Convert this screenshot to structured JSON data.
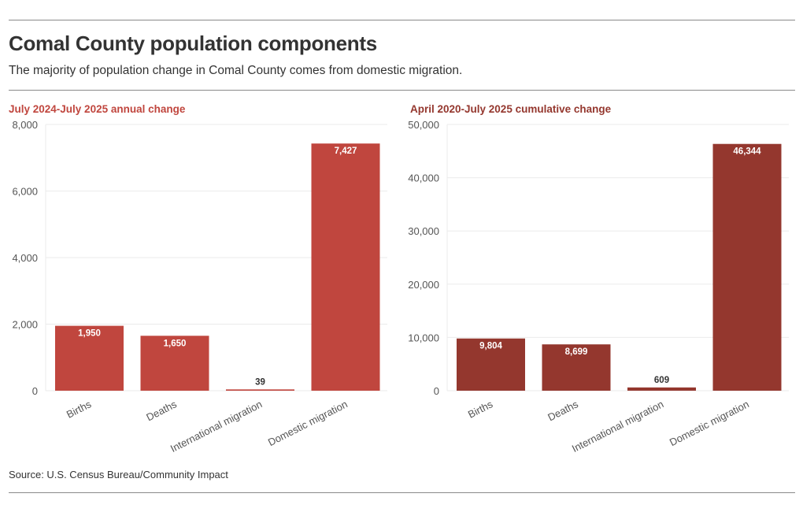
{
  "title": "Comal County population components",
  "subtitle": "The majority of population change in Comal County comes from domestic migration.",
  "source": "Source: U.S. Census Bureau/Community Impact",
  "colors": {
    "annual_bar": "#c0463e",
    "cumulative_bar": "#94372e",
    "annual_title": "#c0463e",
    "cumulative_title": "#94372e",
    "gridline": "#ebebeb",
    "axis_text": "#555555"
  },
  "chart_data": [
    {
      "type": "bar",
      "title": "July 2024-July 2025 annual change",
      "categories": [
        "Births",
        "Deaths",
        "International migration",
        "Domestic migration"
      ],
      "values": [
        1950,
        1650,
        39,
        7427
      ],
      "value_labels": [
        "1,950",
        "1,650",
        "39",
        "7,427"
      ],
      "xlabel": "",
      "ylabel": "",
      "ylim": [
        0,
        8000
      ],
      "yticks": [
        0,
        2000,
        4000,
        6000,
        8000
      ],
      "ytick_labels": [
        "0",
        "2,000",
        "4,000",
        "6,000",
        "8,000"
      ],
      "grid": true
    },
    {
      "type": "bar",
      "title": "April 2020-July 2025 cumulative change",
      "categories": [
        "Births",
        "Deaths",
        "International migration",
        "Domestic migration"
      ],
      "values": [
        9804,
        8699,
        609,
        46344
      ],
      "value_labels": [
        "9,804",
        "8,699",
        "609",
        "46,344"
      ],
      "xlabel": "",
      "ylabel": "",
      "ylim": [
        0,
        50000
      ],
      "yticks": [
        0,
        10000,
        20000,
        30000,
        40000,
        50000
      ],
      "ytick_labels": [
        "0",
        "10,000",
        "20,000",
        "30,000",
        "40,000",
        "50,000"
      ],
      "grid": true
    }
  ]
}
